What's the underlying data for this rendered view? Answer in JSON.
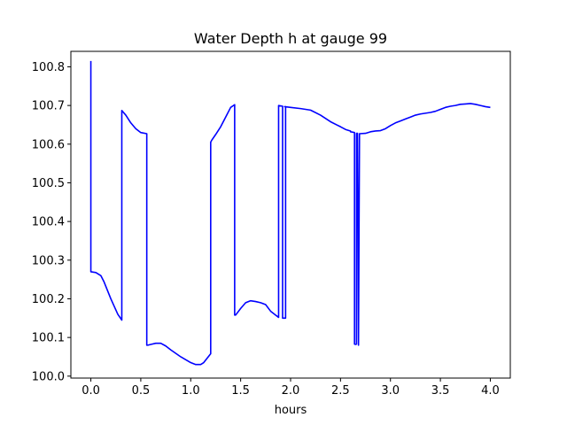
{
  "chart_data": {
    "type": "line",
    "title": "Water Depth h at gauge 99",
    "xlabel": "hours",
    "ylabel": "",
    "xlim": [
      -0.2,
      4.2
    ],
    "ylim": [
      99.995,
      100.84
    ],
    "xticks": [
      0.0,
      0.5,
      1.0,
      1.5,
      2.0,
      2.5,
      3.0,
      3.5,
      4.0
    ],
    "xtick_labels": [
      "0.0",
      "0.5",
      "1.0",
      "1.5",
      "2.0",
      "2.5",
      "3.0",
      "3.5",
      "4.0"
    ],
    "yticks": [
      100.0,
      100.1,
      100.2,
      100.3,
      100.4,
      100.5,
      100.6,
      100.7,
      100.8
    ],
    "ytick_labels": [
      "100.0",
      "100.1",
      "100.2",
      "100.3",
      "100.4",
      "100.5",
      "100.6",
      "100.7",
      "100.8"
    ],
    "grid": false,
    "series": [
      {
        "color": "#0000ff",
        "x": [
          0.0,
          0.0,
          0.05,
          0.1,
          0.13,
          0.2,
          0.27,
          0.31,
          0.31,
          0.35,
          0.4,
          0.45,
          0.5,
          0.56,
          0.56,
          0.57,
          0.6,
          0.65,
          0.7,
          0.75,
          0.8,
          0.9,
          1.0,
          1.05,
          1.1,
          1.13,
          1.2,
          1.2,
          1.21,
          1.25,
          1.3,
          1.35,
          1.4,
          1.44,
          1.44,
          1.45,
          1.5,
          1.55,
          1.6,
          1.65,
          1.7,
          1.75,
          1.8,
          1.85,
          1.88,
          1.88,
          1.92,
          1.92,
          1.95,
          1.95,
          1.94,
          2.0,
          2.1,
          2.2,
          2.3,
          2.4,
          2.5,
          2.55,
          2.6,
          2.6,
          2.64,
          2.64,
          2.65,
          2.66,
          2.66,
          2.67,
          2.68,
          2.68,
          2.69,
          2.69,
          2.75,
          2.8,
          2.85,
          2.9,
          2.95,
          3.0,
          3.05,
          3.1,
          3.15,
          3.2,
          3.25,
          3.3,
          3.4,
          3.45,
          3.5,
          3.55,
          3.6,
          3.65,
          3.7,
          3.75,
          3.8,
          3.85,
          3.9,
          3.95,
          4.0
        ],
        "y": [
          100.815,
          100.27,
          100.268,
          100.26,
          100.245,
          100.2,
          100.16,
          100.145,
          100.687,
          100.675,
          100.655,
          100.64,
          100.63,
          100.627,
          100.08,
          100.08,
          100.082,
          100.085,
          100.085,
          100.078,
          100.068,
          100.05,
          100.035,
          100.03,
          100.03,
          100.035,
          100.058,
          100.605,
          100.61,
          100.625,
          100.645,
          100.67,
          100.695,
          100.702,
          100.158,
          100.158,
          100.175,
          100.19,
          100.195,
          100.193,
          100.19,
          100.185,
          100.168,
          100.158,
          100.152,
          100.7,
          100.698,
          100.15,
          100.15,
          100.697,
          100.697,
          100.695,
          100.692,
          100.688,
          100.675,
          100.658,
          100.645,
          100.638,
          100.634,
          100.632,
          100.63,
          100.083,
          100.082,
          100.083,
          100.628,
          100.628,
          100.08,
          100.08,
          100.627,
          100.627,
          100.628,
          100.632,
          100.634,
          100.635,
          100.64,
          100.648,
          100.655,
          100.66,
          100.665,
          100.67,
          100.675,
          100.678,
          100.682,
          100.685,
          100.69,
          100.695,
          100.698,
          100.7,
          100.703,
          100.704,
          100.705,
          100.703,
          100.7,
          100.697,
          100.695
        ]
      }
    ]
  }
}
